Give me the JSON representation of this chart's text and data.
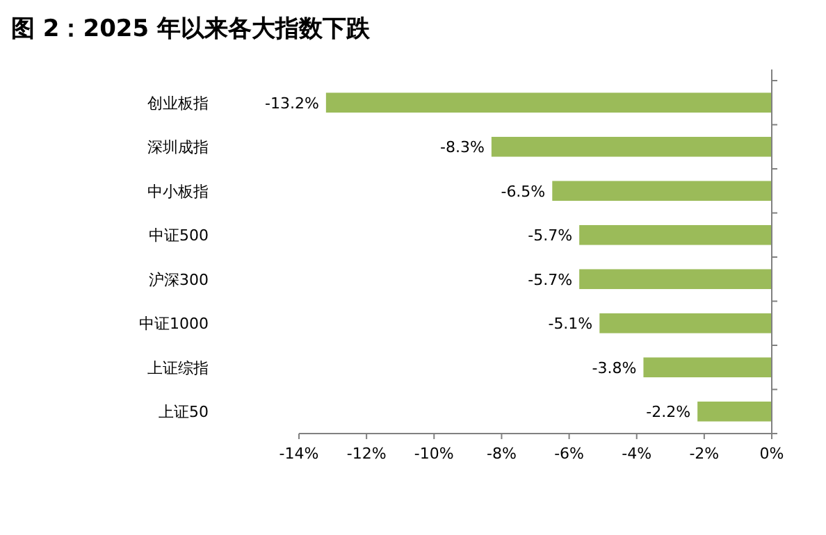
{
  "chart_data": {
    "type": "bar",
    "orientation": "horizontal",
    "title": "图 2：2025 年以来各大指数下跌",
    "categories": [
      "创业板指",
      "深圳成指",
      "中小板指",
      "中证500",
      "沪深300",
      "中证1000",
      "上证综指",
      "上证50"
    ],
    "values": [
      -13.2,
      -8.3,
      -6.5,
      -5.7,
      -5.7,
      -5.1,
      -3.8,
      -2.2
    ],
    "value_labels": [
      "-13.2%",
      "-8.3%",
      "-6.5%",
      "-5.7%",
      "-5.7%",
      "-5.1%",
      "-3.8%",
      "-2.2%"
    ],
    "color": "#9bbb59",
    "xlim": [
      -14,
      0
    ],
    "xticks": [
      {
        "value": -14,
        "label": "-14%"
      },
      {
        "value": -12,
        "label": "-12%"
      },
      {
        "value": -10,
        "label": "-10%"
      },
      {
        "value": -8,
        "label": "-8%"
      },
      {
        "value": -6,
        "label": "-6%"
      },
      {
        "value": -4,
        "label": "-4%"
      },
      {
        "value": -2,
        "label": "-2%"
      },
      {
        "value": 0,
        "label": "0%"
      }
    ],
    "grid": false
  }
}
